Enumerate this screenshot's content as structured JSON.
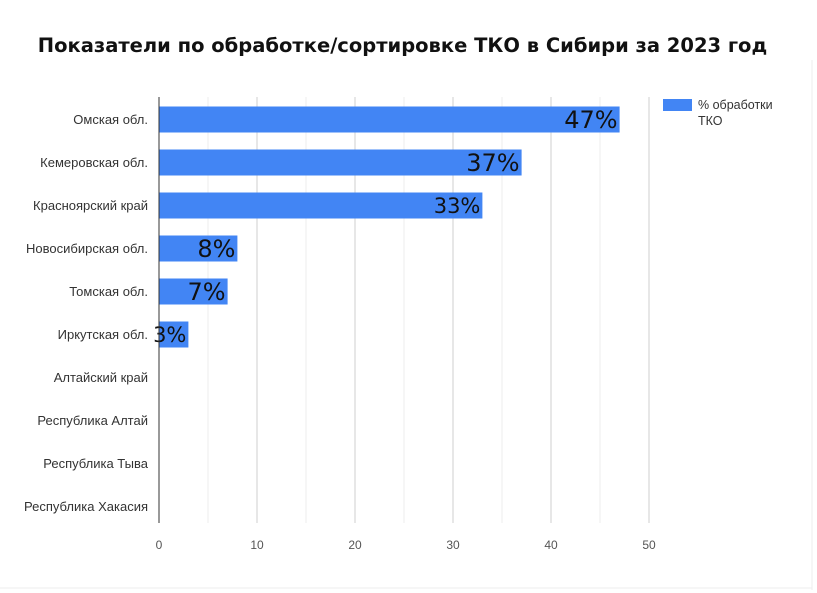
{
  "chart_data": {
    "type": "bar",
    "orientation": "horizontal",
    "title": "Показатели по обработке/сортировке ТКО в Сибири за 2023 год",
    "categories": [
      "Омская обл.",
      "Кемеровская обл.",
      "Красноярский край",
      "Новосибирская обл.",
      "Томская обл.",
      "Иркутская обл.",
      "Алтайский край",
      "Республика Алтай",
      "Республика Тыва",
      "Республика Хакасия"
    ],
    "series": [
      {
        "name": "% обработки ТКО",
        "values": [
          47,
          37,
          33,
          8,
          7,
          3,
          null,
          null,
          null,
          null
        ],
        "data_labels": [
          "47%",
          "37%",
          "33%",
          "8%",
          "7%",
          "3%",
          "",
          "",
          "",
          ""
        ]
      }
    ],
    "xlim": [
      0,
      50
    ],
    "xticks": [
      0,
      10,
      20,
      30,
      40,
      50
    ],
    "grid": true,
    "legend_position": "top-right",
    "legend_lines": [
      "% обработки",
      "ТКО"
    ],
    "bar_color": "#4285f4"
  }
}
